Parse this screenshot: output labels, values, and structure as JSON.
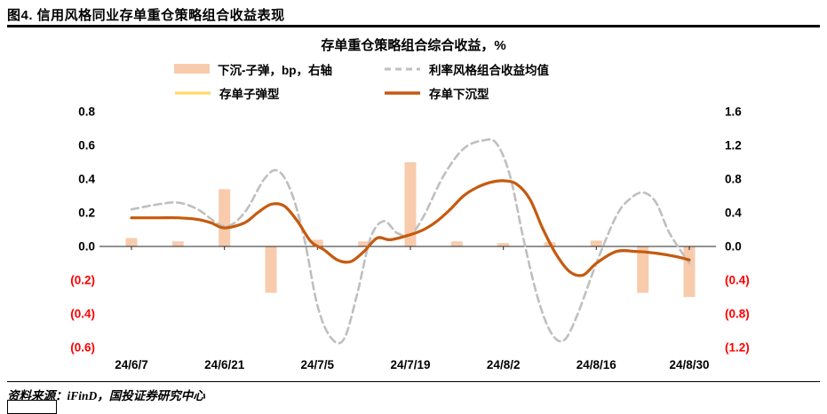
{
  "figure": {
    "title": "图4. 信用风格同业存单重仓策略组合收益表现",
    "source": "资料来源：iFinD，国投证券研究中心"
  },
  "colors": {
    "bar_pink": "#F8CBAD",
    "gray_dashed": "#BFBFBF",
    "yellow": "#FFD966",
    "orange": "#C55A11",
    "negative_label": "#FF0000",
    "axis": "#262626"
  },
  "chart_data": {
    "type": "combo (bar + line)",
    "title": "存单重仓策略组合综合收益，%",
    "grid": "off",
    "legend_position": "top",
    "left_axis": {
      "min": -0.6,
      "max": 0.8,
      "step": 0.2,
      "ticks": [
        "0.8",
        "0.6",
        "0.4",
        "0.2",
        "0.0",
        "(0.2)",
        "(0.4)",
        "(0.6)"
      ]
    },
    "right_axis": {
      "min": -1.2,
      "max": 1.6,
      "step": 0.4,
      "ticks": [
        "1.6",
        "1.2",
        "0.8",
        "0.4",
        "0.0",
        "(0.4)",
        "(0.8)",
        "(1.2)"
      ]
    },
    "x_labels": [
      "24/6/7",
      "24/6/21",
      "24/7/5",
      "24/7/19",
      "24/8/2",
      "24/8/16",
      "24/8/30"
    ],
    "x_label_days": [
      0,
      14,
      28,
      42,
      56,
      70,
      84
    ],
    "bars": {
      "name": "下沉-子弹，bp，右轴",
      "axis": "right",
      "color": "#F8CBAD",
      "x_days": [
        0,
        7,
        14,
        21,
        28,
        35,
        42,
        49,
        56,
        63,
        70,
        77,
        84
      ],
      "values": [
        0.1,
        0.06,
        0.68,
        -0.55,
        0.08,
        0.06,
        1.0,
        0.06,
        0.04,
        0.05,
        0.07,
        -0.55,
        -0.6
      ]
    },
    "series": [
      {
        "id": "rate-style-mean",
        "name": "利率风格组合收益均值",
        "axis": "left",
        "style": "dashed",
        "color": "#BFBFBF",
        "width": 2.6,
        "dash": "8 5",
        "x_days": [
          0,
          4,
          7,
          10,
          14,
          17,
          20,
          22,
          24,
          26,
          28,
          30,
          32,
          34,
          36,
          38,
          40,
          42,
          44,
          47,
          50,
          53,
          55,
          57,
          59,
          61,
          63,
          65,
          67,
          70,
          73,
          75,
          77,
          79,
          81,
          84
        ],
        "values": [
          0.22,
          0.25,
          0.26,
          0.22,
          0.12,
          0.2,
          0.4,
          0.45,
          0.33,
          0.05,
          -0.35,
          -0.54,
          -0.55,
          -0.28,
          0.05,
          0.15,
          0.08,
          0.07,
          0.18,
          0.42,
          0.58,
          0.63,
          0.61,
          0.42,
          0.05,
          -0.28,
          -0.5,
          -0.56,
          -0.42,
          -0.1,
          0.18,
          0.28,
          0.32,
          0.26,
          0.08,
          -0.1
        ]
      },
      {
        "id": "cd-bullet",
        "name": "存单子弹型",
        "axis": "left",
        "style": "solid",
        "color": "#FFD966",
        "width": 3,
        "x_days": [
          0,
          4,
          7,
          10,
          12,
          14,
          17,
          19,
          21,
          23,
          25,
          27,
          29,
          31,
          33,
          35,
          37,
          39,
          42,
          44,
          46,
          48,
          50,
          52,
          54,
          56,
          58,
          60,
          62,
          64,
          66,
          68,
          70,
          73,
          76,
          79,
          82,
          84
        ],
        "values": [
          0.17,
          0.17,
          0.17,
          0.16,
          0.14,
          0.11,
          0.14,
          0.2,
          0.25,
          0.24,
          0.15,
          0.03,
          -0.02,
          -0.08,
          -0.09,
          -0.03,
          0.05,
          0.04,
          0.07,
          0.1,
          0.15,
          0.22,
          0.3,
          0.35,
          0.38,
          0.39,
          0.37,
          0.28,
          0.1,
          -0.05,
          -0.15,
          -0.17,
          -0.1,
          -0.03,
          -0.03,
          -0.04,
          -0.06,
          -0.08
        ]
      },
      {
        "id": "cd-sink",
        "name": "存单下沉型",
        "axis": "left",
        "style": "solid",
        "color": "#C55A11",
        "width": 3.2,
        "x_days": [
          0,
          4,
          7,
          10,
          12,
          14,
          17,
          19,
          21,
          23,
          25,
          27,
          29,
          31,
          33,
          35,
          37,
          39,
          42,
          44,
          46,
          48,
          50,
          52,
          54,
          56,
          58,
          60,
          62,
          64,
          66,
          68,
          70,
          73,
          76,
          79,
          82,
          84
        ],
        "values": [
          0.17,
          0.17,
          0.17,
          0.16,
          0.14,
          0.11,
          0.14,
          0.2,
          0.25,
          0.24,
          0.15,
          0.03,
          -0.02,
          -0.08,
          -0.09,
          -0.03,
          0.05,
          0.04,
          0.07,
          0.1,
          0.15,
          0.22,
          0.3,
          0.35,
          0.38,
          0.39,
          0.37,
          0.28,
          0.1,
          -0.05,
          -0.15,
          -0.17,
          -0.1,
          -0.03,
          -0.03,
          -0.04,
          -0.06,
          -0.08
        ]
      }
    ],
    "legend": [
      {
        "swatch": "bar",
        "color": "#F8CBAD",
        "label": "下沉-子弹，bp，右轴"
      },
      {
        "swatch": "line",
        "color": "#BFBFBF",
        "width": 3,
        "dash": "7 5",
        "label": "利率风格组合收益均值"
      },
      {
        "swatch": "line",
        "color": "#FFD966",
        "width": 3.2,
        "label": "存单子弹型"
      },
      {
        "swatch": "line",
        "color": "#C55A11",
        "width": 3.5,
        "label": "存单下沉型"
      }
    ]
  }
}
